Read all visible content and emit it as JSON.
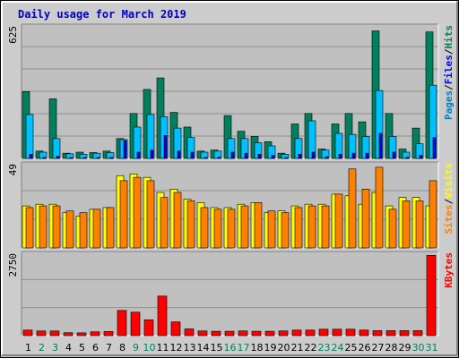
{
  "chart_data": [
    {
      "type": "bar",
      "title": "Daily usage for March 2019",
      "panel": "hits-files-pages",
      "ymax_label": "625",
      "ylim": [
        0,
        625
      ],
      "legend": [
        {
          "name": "Pages",
          "color": "#0080c0"
        },
        {
          "name": "Files",
          "color": "#0000ff"
        },
        {
          "name": "Hits",
          "color": "#00805c"
        }
      ],
      "series": [
        {
          "name": "Hits",
          "color": "#00805c",
          "values": [
            320,
            35,
            285,
            25,
            30,
            28,
            35,
            95,
            215,
            330,
            385,
            220,
            150,
            35,
            40,
            205,
            130,
            105,
            80,
            25,
            165,
            215,
            45,
            165,
            215,
            175,
            610,
            215,
            45,
            145,
            605
          ]
        },
        {
          "name": "Files",
          "color": "#00c0ff",
          "values": [
            210,
            30,
            95,
            22,
            20,
            25,
            28,
            90,
            150,
            210,
            200,
            145,
            100,
            30,
            35,
            95,
            95,
            75,
            60,
            20,
            95,
            180,
            40,
            120,
            115,
            105,
            325,
            105,
            30,
            70,
            350
          ]
        },
        {
          "name": "Pages",
          "color": "#0000ff",
          "values": [
            20,
            5,
            10,
            3,
            4,
            4,
            5,
            85,
            30,
            40,
            110,
            35,
            30,
            5,
            6,
            30,
            25,
            20,
            15,
            4,
            20,
            30,
            8,
            20,
            25,
            25,
            120,
            30,
            6,
            15,
            100
          ]
        }
      ],
      "categories": [
        "1",
        "2",
        "3",
        "4",
        "5",
        "6",
        "7",
        "8",
        "9",
        "10",
        "11",
        "12",
        "13",
        "14",
        "15",
        "16",
        "17",
        "18",
        "19",
        "20",
        "21",
        "22",
        "23",
        "24",
        "25",
        "26",
        "27",
        "28",
        "29",
        "30",
        "31"
      ]
    },
    {
      "type": "bar",
      "panel": "visits-sites",
      "ymax_label": "49",
      "ylim": [
        0,
        49
      ],
      "legend": [
        {
          "name": "Sites",
          "color": "#ff8000"
        },
        {
          "name": "Visits",
          "color": "#ffff00"
        }
      ],
      "series": [
        {
          "name": "Visits",
          "color": "#ffff00",
          "values": [
            25,
            26,
            26,
            21,
            19,
            23,
            24,
            43,
            44,
            42,
            33,
            35,
            29,
            27,
            24,
            24,
            26,
            27,
            21,
            22,
            25,
            26,
            26,
            32,
            31,
            26,
            33,
            25,
            30,
            30,
            25
          ]
        },
        {
          "name": "Sites",
          "color": "#ff8000",
          "values": [
            24,
            25,
            25,
            22,
            21,
            23,
            24,
            40,
            42,
            40,
            30,
            33,
            28,
            24,
            23,
            23,
            25,
            27,
            22,
            21,
            24,
            25,
            25,
            32,
            47,
            35,
            48,
            23,
            28,
            28,
            40
          ]
        }
      ],
      "categories": [
        "1",
        "2",
        "3",
        "4",
        "5",
        "6",
        "7",
        "8",
        "9",
        "10",
        "11",
        "12",
        "13",
        "14",
        "15",
        "16",
        "17",
        "18",
        "19",
        "20",
        "21",
        "22",
        "23",
        "24",
        "25",
        "26",
        "27",
        "28",
        "29",
        "30",
        "31"
      ]
    },
    {
      "type": "bar",
      "panel": "kbytes",
      "ymax_label": "2750",
      "ylim": [
        0,
        2750
      ],
      "legend": [
        {
          "name": "KBytes",
          "color": "#ff0000"
        }
      ],
      "series": [
        {
          "name": "KBytes",
          "color": "#ff0000",
          "values": [
            190,
            160,
            160,
            100,
            95,
            130,
            140,
            860,
            800,
            540,
            1350,
            470,
            230,
            160,
            150,
            150,
            160,
            150,
            150,
            160,
            190,
            190,
            220,
            220,
            220,
            190,
            170,
            170,
            170,
            170,
            2740
          ]
        }
      ],
      "categories": [
        "1",
        "2",
        "3",
        "4",
        "5",
        "6",
        "7",
        "8",
        "9",
        "10",
        "11",
        "12",
        "13",
        "14",
        "15",
        "16",
        "17",
        "18",
        "19",
        "20",
        "21",
        "22",
        "23",
        "24",
        "25",
        "26",
        "27",
        "28",
        "29",
        "30",
        "31"
      ]
    }
  ],
  "colors": {
    "title": "#0000c0",
    "weekend_day": "#00805c",
    "weekday": "#000000",
    "panel_bg": "#c0c0c0",
    "outer_bg": "#d0d0d0"
  },
  "x_axis": {
    "days": [
      "1",
      "2",
      "3",
      "4",
      "5",
      "6",
      "7",
      "8",
      "9",
      "10",
      "11",
      "12",
      "13",
      "14",
      "15",
      "16",
      "17",
      "18",
      "19",
      "20",
      "21",
      "22",
      "23",
      "24",
      "25",
      "26",
      "27",
      "28",
      "29",
      "30",
      "31"
    ],
    "weekend": [
      "2",
      "3",
      "9",
      "10",
      "16",
      "17",
      "23",
      "24",
      "30",
      "31"
    ]
  }
}
